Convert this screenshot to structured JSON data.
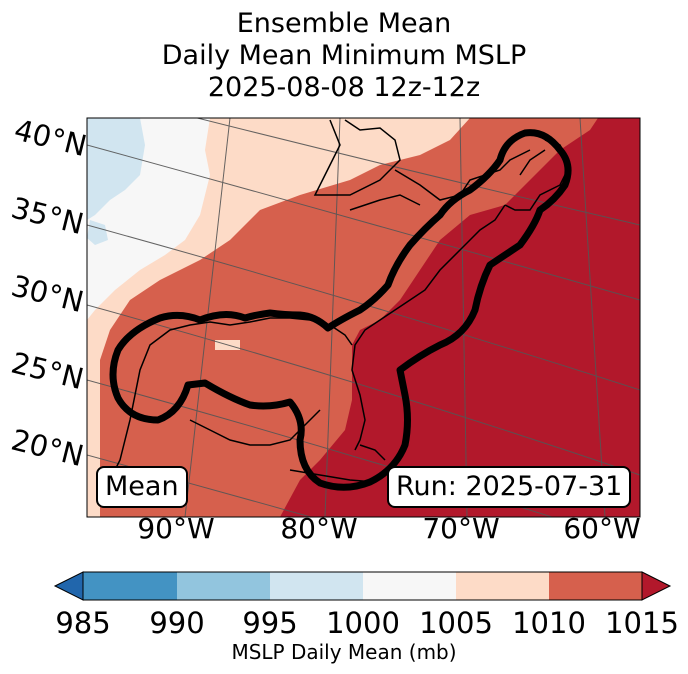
{
  "title": {
    "line1": "Ensemble Mean",
    "line2": "Daily Mean Minimum MSLP",
    "line3": "2025-08-08 12z-12z"
  },
  "map": {
    "lat_labels": [
      "40°N",
      "35°N",
      "30°N",
      "25°N",
      "20°N"
    ],
    "lon_labels": [
      "90°W",
      "80°W",
      "70°W",
      "60°W"
    ],
    "left_box": "Mean",
    "right_box": "Run: 2025-07-31",
    "contour": "black outline of ensemble cone",
    "colors": {
      "c985": "#2166ac",
      "c990": "#4393c3",
      "c995": "#92c5de",
      "c1000": "#d1e5f0",
      "c1005": "#f7f7f7",
      "c1010": "#fddbc7",
      "c1015": "#d6604d",
      "c1020": "#b2182b"
    }
  },
  "colorbar": {
    "ticks": [
      "985",
      "990",
      "995",
      "1000",
      "1005",
      "1010",
      "1015"
    ],
    "label": "MSLP Daily Mean (mb)",
    "colors": [
      "#4393c3",
      "#92c5de",
      "#d1e5f0",
      "#f7f7f7",
      "#fddbc7",
      "#d6604d"
    ],
    "under_color": "#2166ac",
    "over_color": "#b2182b"
  }
}
